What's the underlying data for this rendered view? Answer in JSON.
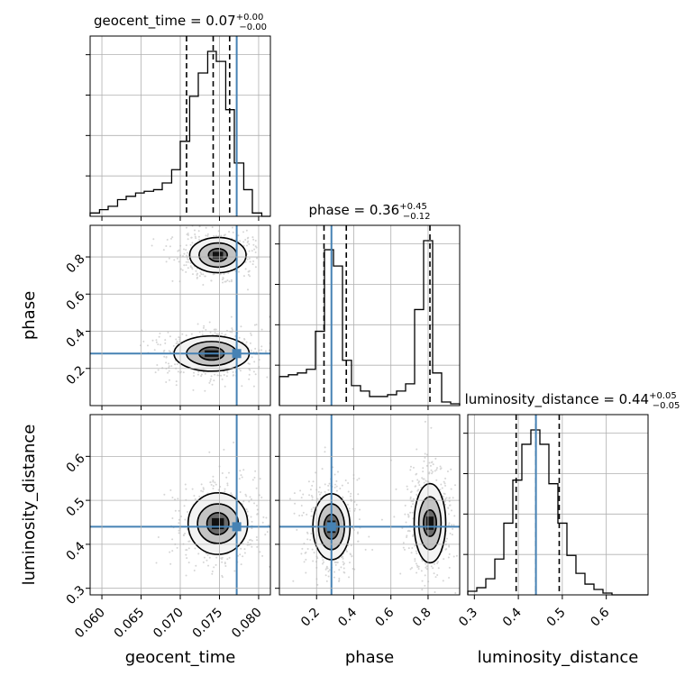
{
  "chart_data": {
    "type": "corner",
    "truth_color": "#4682b4",
    "parameters": [
      {
        "name": "geocent_time",
        "axis_label": "geocent_time",
        "title": {
          "text": "geocent_time = 0.07",
          "plus": "+0.00",
          "minus": "−0.00"
        },
        "range": [
          0.0585,
          0.0815
        ],
        "ticks": [
          0.06,
          0.065,
          0.07,
          0.075,
          0.08
        ],
        "tick_labels": [
          "0.060",
          "0.065",
          "0.070",
          "0.075",
          "0.080"
        ],
        "quantiles": [
          0.0708,
          0.0742,
          0.0763
        ],
        "truth": 0.0772,
        "histogram": {
          "edges": [
            0.0585,
            0.0597,
            0.0608,
            0.062,
            0.0631,
            0.0643,
            0.0654,
            0.0666,
            0.0677,
            0.0689,
            0.07,
            0.0712,
            0.0723,
            0.0735,
            0.0746,
            0.0758,
            0.0769,
            0.0781,
            0.0792,
            0.0804,
            0.0815
          ],
          "values": [
            0.02,
            0.04,
            0.06,
            0.1,
            0.12,
            0.14,
            0.15,
            0.16,
            0.2,
            0.28,
            0.45,
            0.72,
            0.86,
            0.99,
            0.93,
            0.64,
            0.32,
            0.16,
            0.02,
            0.0
          ]
        }
      },
      {
        "name": "phase",
        "axis_label": "phase",
        "title": {
          "text": "phase = 0.36",
          "plus": "+0.45",
          "minus": "−0.12"
        },
        "range": [
          0.0,
          0.97
        ],
        "ticks": [
          0.2,
          0.4,
          0.6,
          0.8
        ],
        "tick_labels": [
          "0.2",
          "0.4",
          "0.6",
          "0.8"
        ],
        "quantiles": [
          0.24,
          0.36,
          0.81
        ],
        "truth": 0.28,
        "histogram": {
          "edges": [
            0.0,
            0.0485,
            0.097,
            0.1455,
            0.194,
            0.2425,
            0.291,
            0.3395,
            0.388,
            0.4365,
            0.485,
            0.5335,
            0.582,
            0.6305,
            0.679,
            0.7275,
            0.776,
            0.8245,
            0.873,
            0.9215,
            0.97
          ],
          "values": [
            0.16,
            0.17,
            0.18,
            0.2,
            0.41,
            0.86,
            0.77,
            0.25,
            0.11,
            0.08,
            0.05,
            0.05,
            0.06,
            0.08,
            0.12,
            0.53,
            0.91,
            0.18,
            0.02,
            0.01
          ]
        }
      },
      {
        "name": "luminosity_distance",
        "axis_label": "luminosity_distance",
        "title": {
          "text": "luminosity_distance = 0.44",
          "plus": "+0.05",
          "minus": "−0.05"
        },
        "range": [
          0.285,
          0.695
        ],
        "ticks": [
          0.3,
          0.4,
          0.5,
          0.6
        ],
        "tick_labels": [
          "0.3",
          "0.4",
          "0.5",
          "0.6"
        ],
        "quantiles": [
          0.395,
          0.44,
          0.493
        ],
        "truth": 0.44,
        "histogram": {
          "edges": [
            0.285,
            0.3055,
            0.326,
            0.3465,
            0.367,
            0.3875,
            0.408,
            0.4285,
            0.449,
            0.4695,
            0.49,
            0.5105,
            0.531,
            0.5515,
            0.572,
            0.5925,
            0.613,
            0.6335,
            0.654,
            0.6745,
            0.695
          ],
          "values": [
            0.02,
            0.04,
            0.09,
            0.2,
            0.4,
            0.64,
            0.84,
            0.92,
            0.84,
            0.62,
            0.4,
            0.22,
            0.12,
            0.06,
            0.03,
            0.01,
            0.0,
            0.0,
            0.0,
            0.0
          ]
        }
      }
    ],
    "joint_2d": [
      {
        "x": "geocent_time",
        "y": "phase",
        "modes": [
          {
            "center": [
              0.0748,
              0.81
            ],
            "contours": [
              [
                0.0012,
                0.035
              ],
              [
                0.0024,
                0.065
              ],
              [
                0.0036,
                0.095
              ]
            ]
          },
          {
            "center": [
              0.074,
              0.28
            ],
            "contours": [
              [
                0.0016,
                0.035
              ],
              [
                0.0032,
                0.065
              ],
              [
                0.0048,
                0.095
              ]
            ]
          }
        ]
      },
      {
        "x": "geocent_time",
        "y": "luminosity_distance",
        "modes": [
          {
            "center": [
              0.0748,
              0.447
            ],
            "contours": [
              [
                0.0014,
                0.025
              ],
              [
                0.0026,
                0.045
              ],
              [
                0.0038,
                0.07
              ]
            ]
          }
        ]
      },
      {
        "x": "phase",
        "y": "luminosity_distance",
        "modes": [
          {
            "center": [
              0.28,
              0.44
            ],
            "contours": [
              [
                0.04,
                0.028
              ],
              [
                0.07,
                0.052
              ],
              [
                0.1,
                0.075
              ]
            ]
          },
          {
            "center": [
              0.81,
              0.448
            ],
            "contours": [
              [
                0.035,
                0.03
              ],
              [
                0.06,
                0.06
              ],
              [
                0.085,
                0.09
              ]
            ]
          }
        ]
      }
    ]
  }
}
